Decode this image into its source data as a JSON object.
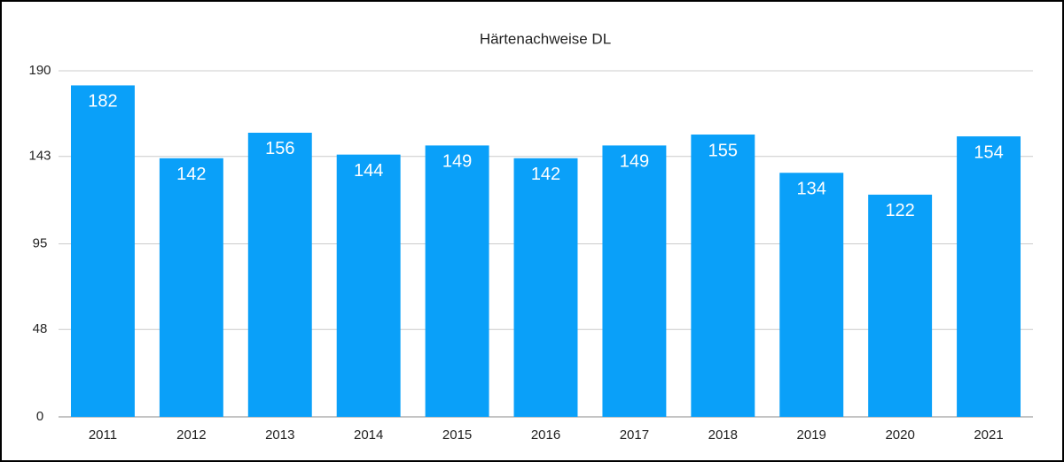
{
  "chart_data": {
    "type": "bar",
    "title": "Härtenachweise DL",
    "categories": [
      "2011",
      "2012",
      "2013",
      "2014",
      "2015",
      "2016",
      "2017",
      "2018",
      "2019",
      "2020",
      "2021"
    ],
    "values": [
      182,
      142,
      156,
      144,
      149,
      142,
      149,
      155,
      134,
      122,
      154
    ],
    "color": "#0aa0f9",
    "ylim": [
      0,
      190
    ],
    "yticks": [
      0,
      48,
      95,
      143,
      190
    ],
    "grid": true
  }
}
